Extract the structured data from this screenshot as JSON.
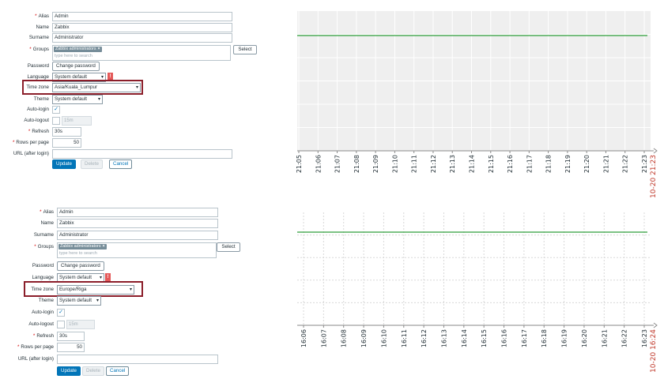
{
  "panel_a": {
    "form": {
      "alias_label": "Alias",
      "alias_value": "Admin",
      "name_label": "Name",
      "name_value": "Zabbix",
      "surname_label": "Surname",
      "surname_value": "Administrator",
      "groups_label": "Groups",
      "groups_tag": "Zabbix administrators",
      "groups_placeholder": "type here to search",
      "select_label": "Select",
      "password_label": "Password",
      "change_password_label": "Change password",
      "language_label": "Language",
      "language_value": "System default",
      "timezone_label": "Time zone",
      "timezone_value": "Asia/Kuala_Lumpur",
      "theme_label": "Theme",
      "theme_value": "System default",
      "autologin_label": "Auto-login",
      "autologout_label": "Auto-logout",
      "autologout_value": "15m",
      "refresh_label": "Refresh",
      "refresh_value": "30s",
      "rows_label": "Rows per page",
      "rows_value": "50",
      "url_label": "URL (after login)",
      "update_label": "Update",
      "delete_label": "Delete",
      "cancel_label": "Cancel"
    },
    "graph": {
      "ticks": [
        "21:05",
        "21:06",
        "21:07",
        "21:08",
        "21:09",
        "21:10",
        "21:11",
        "21:12",
        "21:13",
        "21:14",
        "21:15",
        "21:16",
        "21:17",
        "21:18",
        "21:19",
        "21:20",
        "21:21",
        "21:22",
        "21:23"
      ],
      "end_label": "10-20 21:23",
      "line_color": "#2e9e3a",
      "end_label_color": "#c0392b"
    }
  },
  "panel_b": {
    "form": {
      "alias_label": "Alias",
      "alias_value": "Admin",
      "name_label": "Name",
      "name_value": "Zabbix",
      "surname_label": "Surname",
      "surname_value": "Administrator",
      "groups_label": "Groups",
      "groups_tag": "Zabbix administrators",
      "groups_placeholder": "type here to search",
      "select_label": "Select",
      "password_label": "Password",
      "change_password_label": "Change password",
      "language_label": "Language",
      "language_value": "System default",
      "timezone_label": "Time zone",
      "timezone_value": "Europe/Riga",
      "theme_label": "Theme",
      "theme_value": "System default",
      "autologin_label": "Auto-login",
      "autologout_label": "Auto-logout",
      "autologout_value": "15m",
      "refresh_label": "Refresh",
      "refresh_value": "30s",
      "rows_label": "Rows per page",
      "rows_value": "50",
      "url_label": "URL (after login)",
      "update_label": "Update",
      "delete_label": "Delete",
      "cancel_label": "Cancel"
    },
    "graph": {
      "ticks": [
        "16:06",
        "16:07",
        "16:08",
        "16:09",
        "16:10",
        "16:11",
        "16:12",
        "16:13",
        "16:14",
        "16:15",
        "16:16",
        "16:17",
        "16:18",
        "16:19",
        "16:20",
        "16:21",
        "16:22",
        "16:23"
      ],
      "end_label": "10-20 16:24",
      "line_color": "#2e9e3a",
      "end_label_color": "#c0392b"
    }
  },
  "colors": {
    "highlight_box": "#8b1e2a",
    "primary_button": "#0275b8",
    "warning_icon": "#e45959"
  },
  "icons": {
    "warning": "exclamation-icon",
    "checkbox": "check-icon",
    "dropdown": "chevron-down-icon",
    "tag_remove": "close-icon"
  }
}
